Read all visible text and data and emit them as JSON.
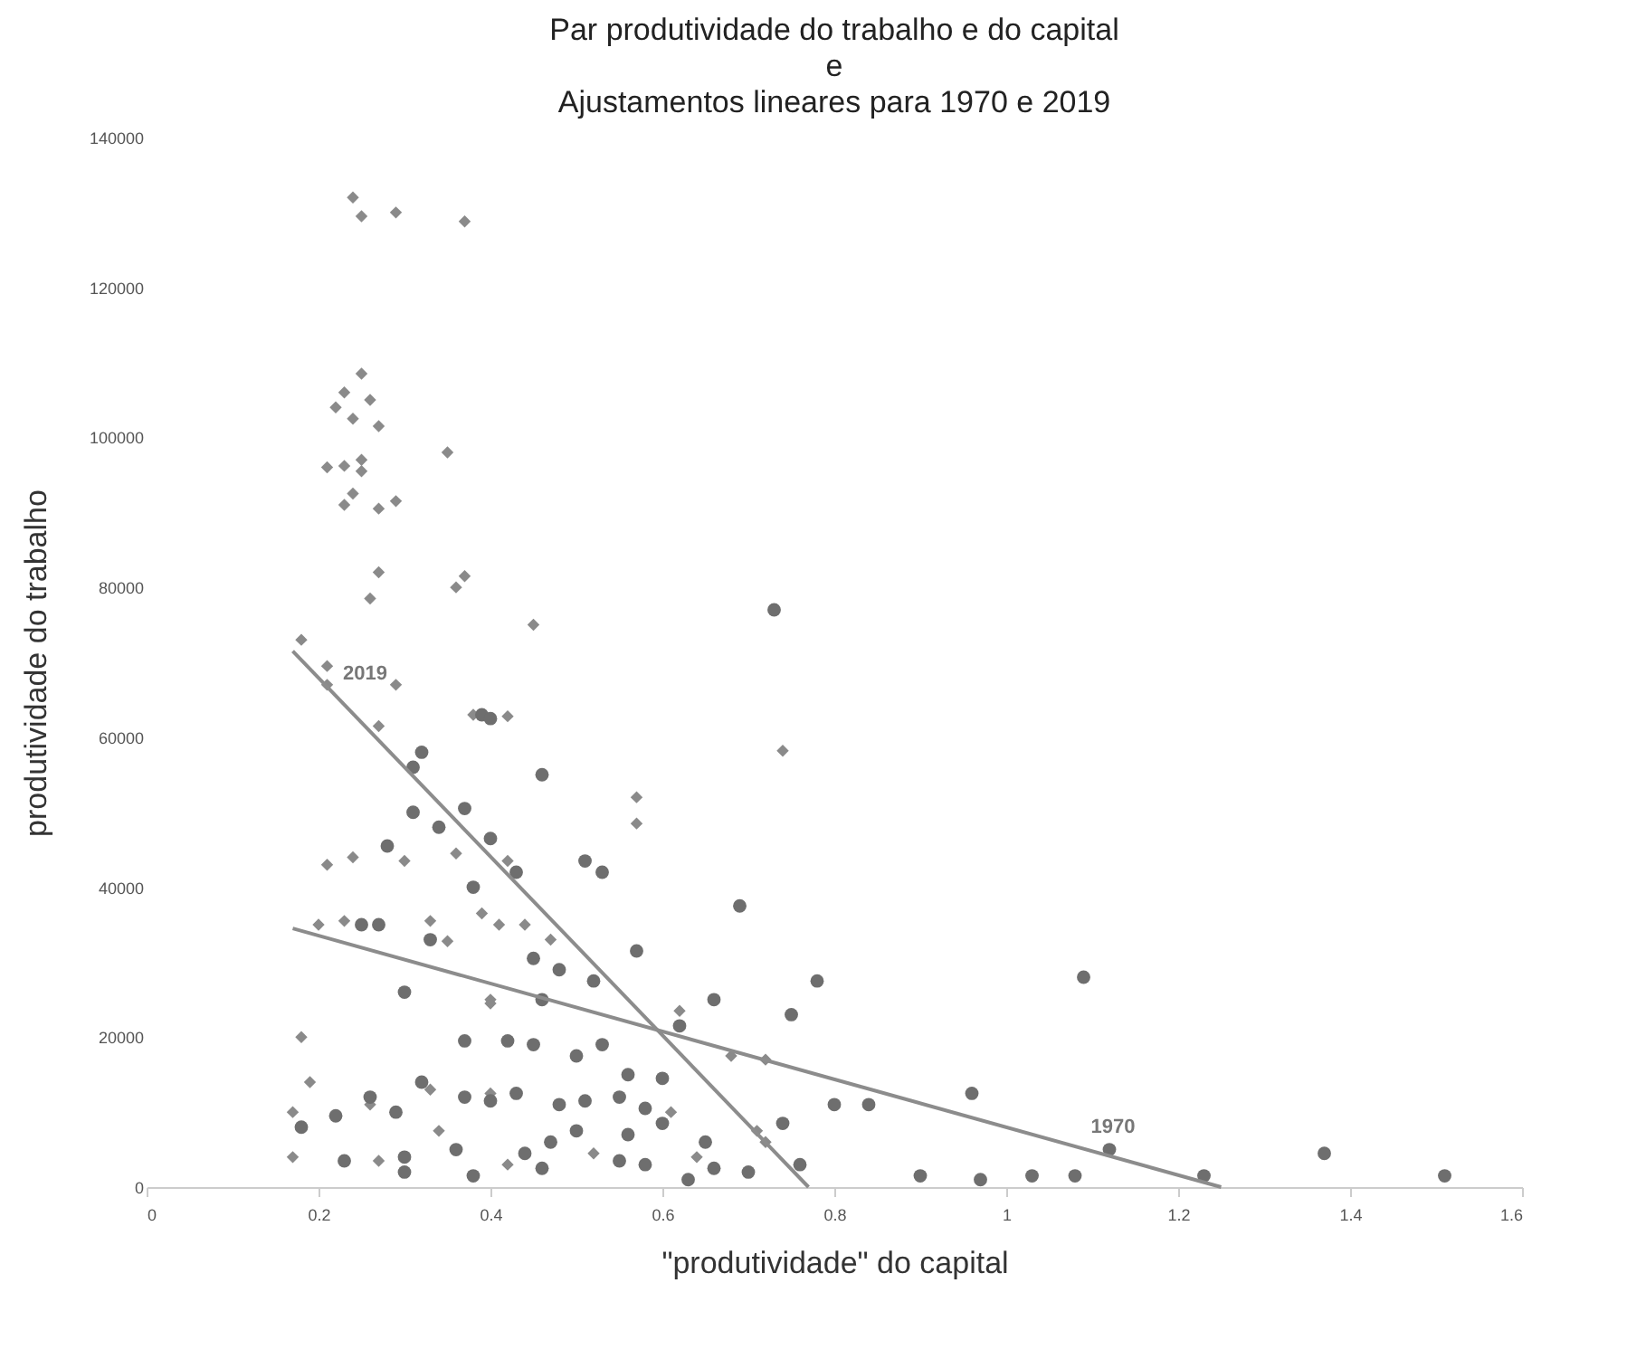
{
  "chart_data": {
    "type": "scatter",
    "title": "Par produtividade do trabalho e do capital\ne\nAjustamentos lineares para 1970 e 2019",
    "xlabel": "\"produtividade\" do capital",
    "ylabel": "produtividade do trabalho",
    "xlim": [
      0,
      1.6
    ],
    "xticks": [
      0,
      0.2,
      0.4,
      0.6,
      0.8,
      1,
      1.2,
      1.4,
      1.6
    ],
    "ylim": [
      0,
      140000
    ],
    "yticks": [
      0,
      20000,
      40000,
      60000,
      80000,
      100000,
      120000,
      140000
    ],
    "annotations": [
      {
        "text": "2019",
        "x": 0.22,
        "y": 65500
      },
      {
        "text": "1970",
        "x": 1.09,
        "y": 5100
      }
    ],
    "series": [
      {
        "marker": "diamond",
        "color": "#8a8a8a",
        "x": [
          0.24,
          0.25,
          0.29,
          0.37,
          0.25,
          0.23,
          0.22,
          0.26,
          0.24,
          0.27,
          0.25,
          0.35,
          0.21,
          0.23,
          0.25,
          0.24,
          0.29,
          0.27,
          0.23,
          0.27,
          0.37,
          0.26,
          0.36,
          0.45,
          0.18,
          0.21,
          0.21,
          0.29,
          0.27,
          0.38,
          0.42,
          0.57,
          0.57,
          0.74,
          0.21,
          0.24,
          0.3,
          0.36,
          0.42,
          0.39,
          0.44,
          0.2,
          0.23,
          0.35,
          0.33,
          0.41,
          0.47,
          0.4,
          0.4,
          0.18,
          0.19,
          0.17,
          0.33,
          0.4,
          0.62,
          0.68,
          0.72,
          0.61,
          0.71,
          0.64,
          0.72,
          0.17,
          0.52,
          0.42,
          0.27,
          0.26,
          0.34
        ],
        "values": [
          132000,
          129500,
          130000,
          128800,
          108500,
          106000,
          104000,
          105000,
          102500,
          101500,
          97000,
          98000,
          96000,
          96200,
          95500,
          92500,
          91500,
          90500,
          91000,
          82000,
          81500,
          78500,
          80000,
          75000,
          73000,
          69500,
          67000,
          67000,
          61500,
          63000,
          62800,
          52000,
          48500,
          58200,
          43000,
          44000,
          43500,
          44500,
          43500,
          36500,
          35000,
          35000,
          35500,
          32800,
          35500,
          35000,
          33000,
          25000,
          24500,
          20000,
          14000,
          10000,
          13000,
          12500,
          23500,
          17500,
          17000,
          10000,
          7500,
          4000,
          6000,
          4000,
          4500,
          3000,
          3500,
          11000,
          7500
        ]
      },
      {
        "marker": "circle",
        "color": "#6e6e6e",
        "x": [
          0.73,
          0.69,
          0.78,
          1.09,
          0.75,
          0.66,
          0.96,
          0.8,
          0.84,
          0.74,
          1.12,
          0.9,
          0.97,
          1.03,
          1.08,
          1.23,
          1.37,
          1.51,
          0.57,
          0.46,
          0.39,
          0.4,
          0.32,
          0.31,
          0.43,
          0.51,
          0.53,
          0.28,
          0.34,
          0.37,
          0.31,
          0.4,
          0.38,
          0.33,
          0.45,
          0.48,
          0.52,
          0.3,
          0.46,
          0.27,
          0.25,
          0.37,
          0.42,
          0.45,
          0.5,
          0.53,
          0.56,
          0.55,
          0.58,
          0.6,
          0.22,
          0.18,
          0.26,
          0.29,
          0.32,
          0.37,
          0.4,
          0.43,
          0.48,
          0.51,
          0.23,
          0.3,
          0.36,
          0.44,
          0.47,
          0.5,
          0.55,
          0.58,
          0.63,
          0.66,
          0.7,
          0.76,
          0.46,
          0.38,
          0.3,
          0.56,
          0.6,
          0.62,
          0.65
        ],
        "values": [
          77000,
          37500,
          27500,
          28000,
          23000,
          25000,
          12500,
          11000,
          11000,
          8500,
          5000,
          1500,
          1000,
          1500,
          1500,
          1500,
          4500,
          1500,
          31500,
          55000,
          63000,
          62500,
          58000,
          56000,
          42000,
          43500,
          42000,
          45500,
          48000,
          50500,
          50000,
          46500,
          40000,
          33000,
          30500,
          29000,
          27500,
          26000,
          25000,
          35000,
          35000,
          19500,
          19500,
          19000,
          17500,
          19000,
          15000,
          12000,
          10500,
          8500,
          9500,
          8000,
          12000,
          10000,
          14000,
          12000,
          11500,
          12500,
          11000,
          11500,
          3500,
          4000,
          5000,
          4500,
          6000,
          7500,
          3500,
          3000,
          1000,
          2500,
          2000,
          3000,
          2500,
          1500,
          2000,
          7000,
          14500,
          21500,
          6000
        ]
      },
      {
        "type": "line",
        "color": "#8c8c8c",
        "x": [
          0.17,
          0.77
        ],
        "values": [
          71500,
          0
        ]
      },
      {
        "type": "line",
        "color": "#8c8c8c",
        "x": [
          0.17,
          1.25
        ],
        "values": [
          34500,
          0
        ]
      }
    ]
  }
}
